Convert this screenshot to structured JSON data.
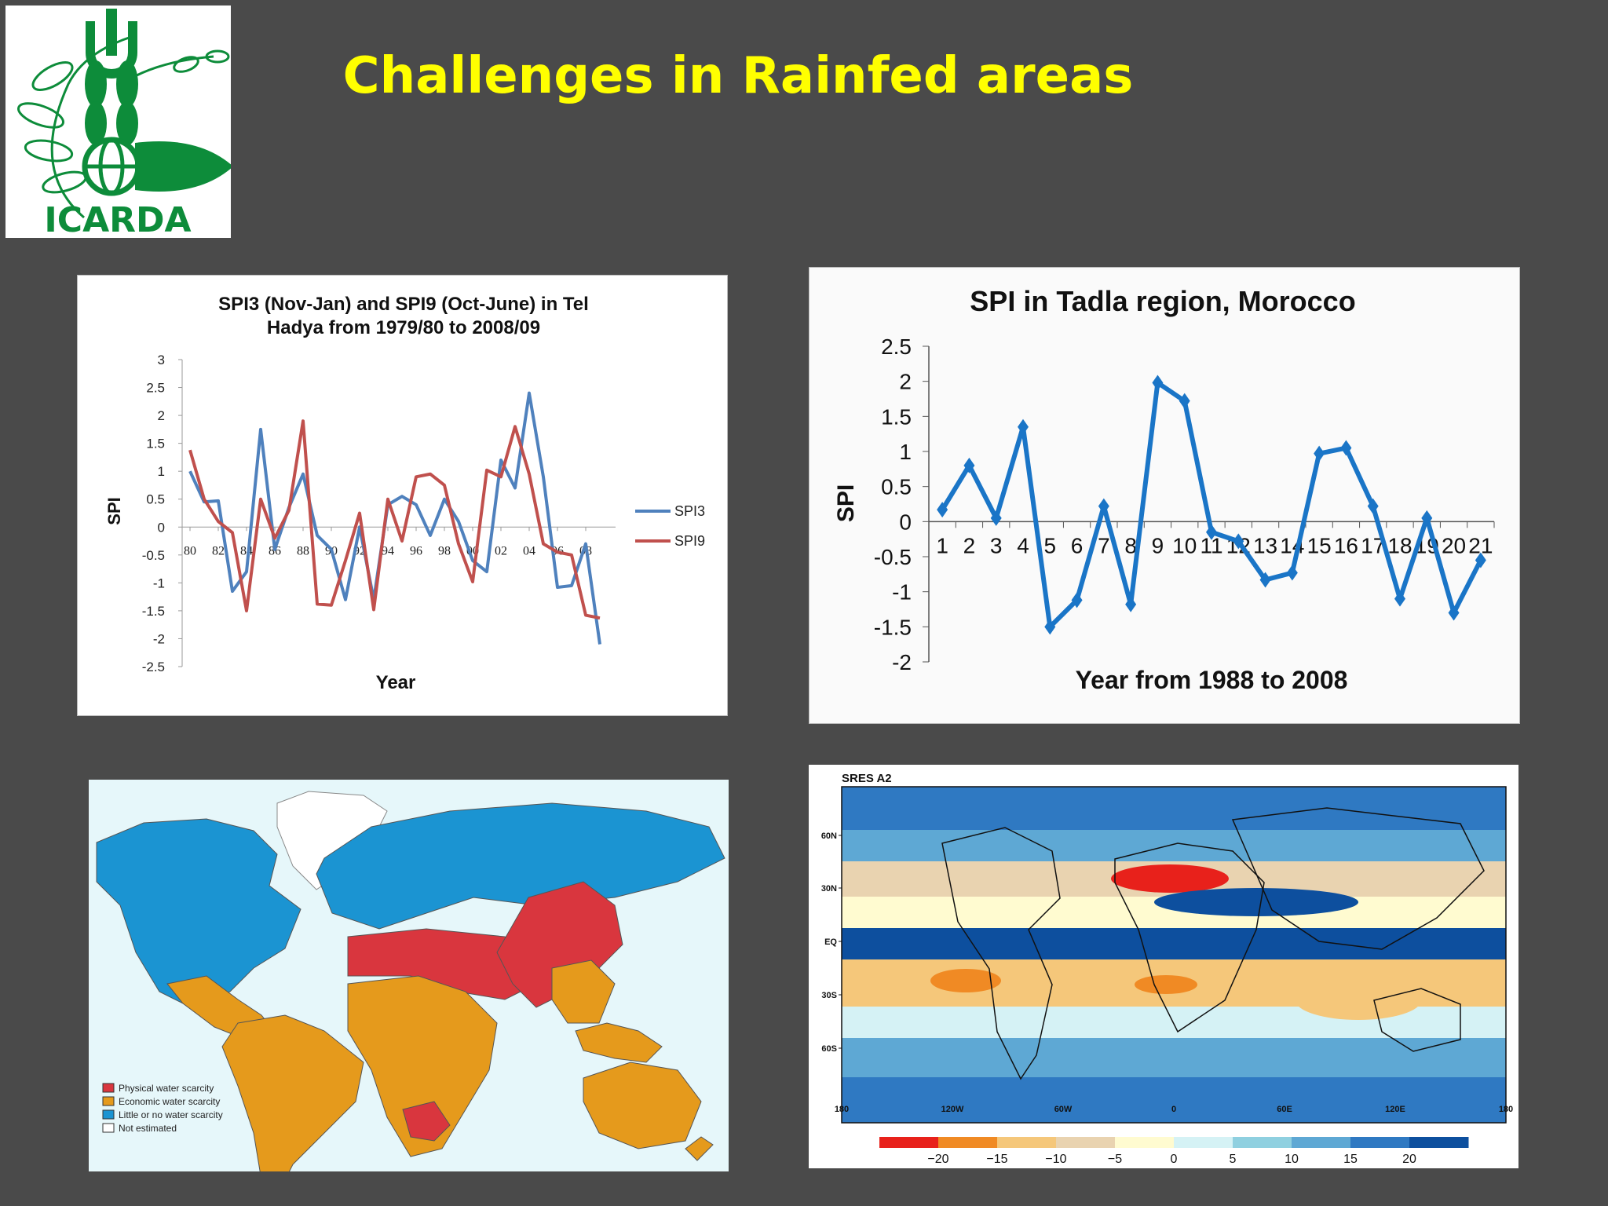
{
  "slide": {
    "title": "Challenges in Rainfed areas",
    "logo_text": "ICARDA",
    "title_color": "#ffff00",
    "background": "#4a4a4a"
  },
  "chart_data": [
    {
      "type": "line",
      "title": "SPI3 (Nov-Jan) and SPI9 (Oct-June) in Tel Hadya from 1979/80 to 2008/09",
      "title_lines": [
        "SPI3 (Nov-Jan) and SPI9 (Oct-June) in Tel",
        "Hadya from 1979/80 to 2008/09"
      ],
      "xlabel": "Year",
      "ylabel": "SPI",
      "ylim": [
        -2.5,
        3
      ],
      "yticks": [
        "3",
        "2.5",
        "2",
        "1.5",
        "1",
        "0.5",
        "0",
        "-0.5",
        "-1",
        "-1.5",
        "-2",
        "-2.5"
      ],
      "x_tick_labels": [
        "80",
        "82",
        "84",
        "86",
        "88",
        "90",
        "92",
        "94",
        "96",
        "98",
        "00",
        "02",
        "04",
        "06",
        "08"
      ],
      "legend_position": "right",
      "series": [
        {
          "name": "SPI3",
          "color": "#4f81bd",
          "values": [
            1.0,
            0.45,
            0.47,
            -1.15,
            -0.8,
            1.75,
            -0.4,
            0.35,
            0.95,
            -0.15,
            -0.4,
            -1.3,
            0.0,
            -1.3,
            0.4,
            0.55,
            0.4,
            -0.15,
            0.5,
            0.1,
            -0.6,
            -0.8,
            1.2,
            0.7,
            2.4,
            0.9,
            -1.08,
            -1.05,
            -0.3,
            -2.1
          ]
        },
        {
          "name": "SPI9",
          "color": "#c0504d",
          "values": [
            1.38,
            0.5,
            0.1,
            -0.1,
            -1.5,
            0.5,
            -0.2,
            0.3,
            1.9,
            -1.38,
            -1.4,
            -0.6,
            0.25,
            -1.48,
            0.5,
            -0.25,
            0.9,
            0.95,
            0.75,
            -0.3,
            -0.98,
            1.02,
            0.9,
            1.8,
            0.95,
            -0.3,
            -0.45,
            -0.5,
            -1.58,
            -1.63
          ]
        }
      ]
    },
    {
      "type": "line",
      "title": "SPI in Tadla region, Morocco",
      "xlabel": "Year from 1988 to 2008",
      "ylabel": "SPI",
      "ylim": [
        -2,
        2.5
      ],
      "yticks": [
        "2.5",
        "2",
        "1.5",
        "1",
        "0.5",
        "0",
        "-0.5",
        "-1",
        "-1.5",
        "-2"
      ],
      "categories": [
        "1",
        "2",
        "3",
        "4",
        "5",
        "6",
        "7",
        "8",
        "9",
        "10",
        "11",
        "12",
        "13",
        "14",
        "15",
        "16",
        "17",
        "18",
        "19",
        "20",
        "21"
      ],
      "series": [
        {
          "name": "",
          "color": "#1a75c7",
          "values": [
            0.17,
            0.8,
            0.05,
            1.35,
            -1.5,
            -1.12,
            0.22,
            -1.18,
            1.98,
            1.72,
            -0.15,
            -0.28,
            -0.83,
            -0.73,
            0.97,
            1.05,
            0.22,
            -1.1,
            0.05,
            -1.3,
            -0.55
          ]
        }
      ]
    }
  ],
  "water_map": {
    "legend": [
      {
        "label": "Physical water scarcity",
        "color": "#d9363e"
      },
      {
        "label": "Economic water scarcity",
        "color": "#e59a1c"
      },
      {
        "label": "Little or no water scarcity",
        "color": "#1b94d2"
      },
      {
        "label": "Not estimated",
        "color": "#ffffff"
      }
    ]
  },
  "climate_map": {
    "title": "SRES A2",
    "lat_labels": [
      "60N",
      "30N",
      "EQ",
      "30S",
      "60S"
    ],
    "lon_labels": [
      "180",
      "120W",
      "60W",
      "0",
      "60E",
      "120E",
      "180"
    ],
    "colorbar_labels": [
      "−20",
      "−15",
      "−10",
      "−5",
      "0",
      "5",
      "10",
      "15",
      "20"
    ],
    "colorbar_colors": [
      "#e8211b",
      "#f08a24",
      "#f5c77a",
      "#e9d3b0",
      "#fffbd0",
      "#d5f2f5",
      "#8fd0e0",
      "#5ea8d4",
      "#2f79c2",
      "#0d4f9e"
    ]
  }
}
